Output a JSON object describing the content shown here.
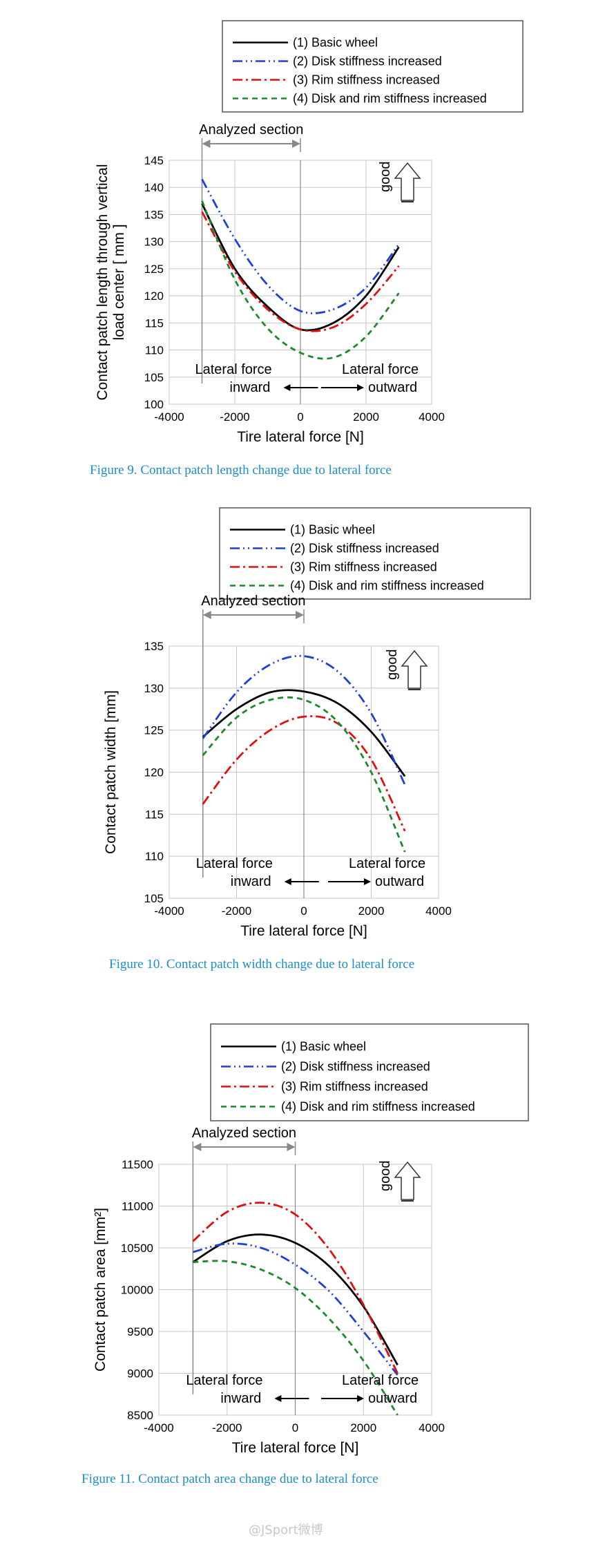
{
  "chart_data": [
    {
      "type": "line",
      "caption": "Figure 9. Contact patch length change due to lateral force",
      "xlabel": "Tire lateral force [N]",
      "ylabel_lines": [
        "Contact patch length through vertical",
        "load center  [ mm ]"
      ],
      "xlim": [
        -4000,
        4000
      ],
      "ylim": [
        100,
        145
      ],
      "xticks": [
        "-4000",
        "-2000",
        "0",
        "2000",
        "4000"
      ],
      "yticks": [
        "100",
        "105",
        "110",
        "115",
        "120",
        "125",
        "130",
        "135",
        "140",
        "145"
      ],
      "analyzed_section": "Analyzed section",
      "left_note": [
        "Lateral force",
        "inward"
      ],
      "right_note": [
        "Lateral force",
        "outward"
      ],
      "good_label": "good",
      "legend_placement": "top",
      "series": [
        {
          "name": "(1) Basic wheel",
          "color": "#000000",
          "dash": "solid",
          "x": [
            -3000,
            -2000,
            -1000,
            0,
            1000,
            2000,
            3000
          ],
          "y": [
            137,
            125,
            118,
            113.8,
            115,
            120,
            129
          ]
        },
        {
          "name": "(2) Disk stiffness increased",
          "color": "#1f3fd6",
          "dash": "dashdotdot",
          "x": [
            -3000,
            -2000,
            -1000,
            0,
            1000,
            2000,
            3000
          ],
          "y": [
            141.5,
            130.5,
            122,
            117.2,
            117.5,
            121.5,
            129.5
          ]
        },
        {
          "name": "(3) Rim stiffness increased",
          "color": "#e01010",
          "dash": "dashdot",
          "x": [
            -3000,
            -2000,
            -1000,
            0,
            1000,
            2000,
            3000
          ],
          "y": [
            135.5,
            124.5,
            117.5,
            113.8,
            114.2,
            118.5,
            125.5
          ]
        },
        {
          "name": "(4) Disk and rim stiffness increased",
          "color": "#1a8a2a",
          "dash": "dashed",
          "x": [
            -3000,
            -2000,
            -1000,
            0,
            1000,
            2000,
            3000
          ],
          "y": [
            137.5,
            123,
            114,
            109.5,
            108.6,
            112.5,
            120.5
          ]
        }
      ]
    },
    {
      "type": "line",
      "caption": "Figure 10. Contact patch width change due to lateral force",
      "xlabel": "Tire lateral force [N]",
      "ylabel_lines": [
        "Contact patch width [mm]"
      ],
      "xlim": [
        -4000,
        4000
      ],
      "ylim": [
        105,
        135
      ],
      "xticks": [
        "-4000",
        "-2000",
        "0",
        "2000",
        "4000"
      ],
      "yticks": [
        "105",
        "110",
        "115",
        "120",
        "125",
        "130",
        "135"
      ],
      "analyzed_section": "Analyzed section",
      "left_note": [
        "Lateral force",
        "inward"
      ],
      "right_note": [
        "Lateral force",
        "outward"
      ],
      "good_label": "good",
      "legend_placement": "top",
      "series": [
        {
          "name": "(1) Basic wheel",
          "color": "#000000",
          "dash": "solid",
          "x": [
            -3000,
            -2000,
            -1000,
            0,
            1000,
            2000,
            3000
          ],
          "y": [
            124.2,
            127.5,
            129.5,
            129.6,
            128.2,
            124.8,
            119.5
          ]
        },
        {
          "name": "(2) Disk stiffness increased",
          "color": "#1f3fd6",
          "dash": "dashdotdot",
          "x": [
            -3000,
            -2000,
            -1000,
            0,
            1000,
            2000,
            3000
          ],
          "y": [
            124,
            129.5,
            132.8,
            133.8,
            132,
            127,
            118.5
          ]
        },
        {
          "name": "(3) Rim stiffness increased",
          "color": "#e01010",
          "dash": "dashdot",
          "x": [
            -3000,
            -2000,
            -1000,
            0,
            1000,
            2000,
            3000
          ],
          "y": [
            116.2,
            121.5,
            125,
            126.6,
            125.8,
            121.5,
            113
          ]
        },
        {
          "name": "(4) Disk and rim stiffness increased",
          "color": "#1a8a2a",
          "dash": "dashed",
          "x": [
            -3000,
            -2000,
            -1000,
            0,
            1000,
            2000,
            3000
          ],
          "y": [
            122,
            126.5,
            128.6,
            128.6,
            126,
            120,
            110.5
          ]
        }
      ]
    },
    {
      "type": "line",
      "caption": "Figure 11. Contact patch area change due to lateral force",
      "xlabel": "Tire lateral force [N]",
      "ylabel_lines": [
        "Contact patch area  [mm²]"
      ],
      "xlim": [
        -4000,
        4000
      ],
      "ylim": [
        8500,
        11500
      ],
      "xticks": [
        "-4000",
        "-2000",
        "0",
        "2000",
        "4000"
      ],
      "yticks": [
        "8500",
        "9000",
        "9500",
        "10000",
        "10500",
        "11000",
        "11500"
      ],
      "analyzed_section": "Analyzed section",
      "left_note": [
        "Lateral force",
        "inward"
      ],
      "right_note": [
        "Lateral force",
        "outward"
      ],
      "good_label": "good",
      "legend_placement": "top",
      "series": [
        {
          "name": "(1) Basic wheel",
          "color": "#000000",
          "dash": "solid",
          "x": [
            -3000,
            -2000,
            -1000,
            0,
            1000,
            2000,
            3000
          ],
          "y": [
            10330,
            10580,
            10660,
            10560,
            10280,
            9800,
            9100
          ]
        },
        {
          "name": "(2) Disk stiffness increased",
          "color": "#1f3fd6",
          "dash": "dashdotdot",
          "x": [
            -3000,
            -2000,
            -1000,
            0,
            1000,
            2000,
            3000
          ],
          "y": [
            10450,
            10550,
            10500,
            10300,
            9980,
            9500,
            8980
          ]
        },
        {
          "name": "(3) Rim stiffness increased",
          "color": "#e01010",
          "dash": "dashdot",
          "x": [
            -3000,
            -2000,
            -1000,
            0,
            1000,
            2000,
            3000
          ],
          "y": [
            10580,
            10930,
            11040,
            10900,
            10480,
            9820,
            9000
          ]
        },
        {
          "name": "(4) Disk and rim stiffness increased",
          "color": "#1a8a2a",
          "dash": "dashed",
          "x": [
            -3000,
            -2000,
            -1000,
            0,
            1000,
            2000,
            3000
          ],
          "y": [
            10330,
            10340,
            10240,
            10020,
            9650,
            9150,
            8500
          ]
        }
      ]
    }
  ],
  "watermark": "@JSport微博"
}
